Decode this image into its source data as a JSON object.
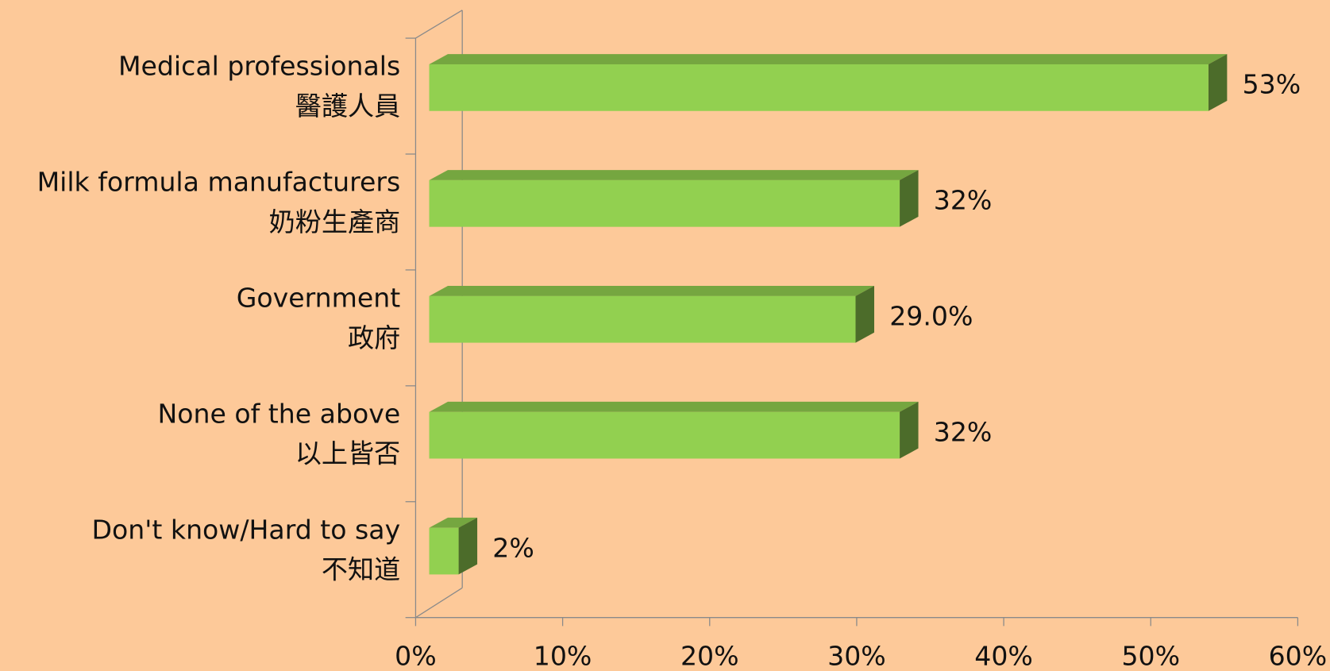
{
  "chart_data": {
    "type": "bar3d_horizontal",
    "categories": [
      [
        "Medical professionals",
        "醫護人員"
      ],
      [
        "Milk formula manufacturers",
        "奶粉生產商"
      ],
      [
        "Government",
        "政府"
      ],
      [
        "None of the above",
        "以上皆否"
      ],
      [
        "Don't know/Hard to say",
        "不知道"
      ]
    ],
    "values": [
      53,
      32,
      29.0,
      32,
      2
    ],
    "value_labels": [
      "53%",
      "32%",
      "29.0%",
      "32%",
      "2%"
    ],
    "color": "#92d050",
    "xlim": [
      0,
      60
    ],
    "xticks": [
      {
        "value": 0,
        "label": "0%"
      },
      {
        "value": 10,
        "label": "10%"
      },
      {
        "value": 20,
        "label": "20%"
      },
      {
        "value": 30,
        "label": "30%"
      },
      {
        "value": 40,
        "label": "40%"
      },
      {
        "value": 50,
        "label": "50%"
      },
      {
        "value": 60,
        "label": "60%"
      }
    ]
  }
}
